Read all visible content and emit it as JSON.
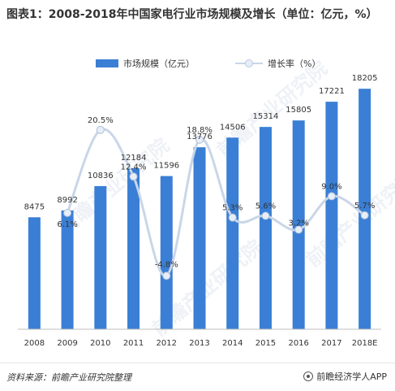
{
  "title": "图表1：2008-2018年中国家电行业市场规模及增长（单位：亿元，%）",
  "legend": {
    "bar_label": "市场规模（亿元）",
    "line_label": "增长率（%）"
  },
  "watermark": "前瞻产业研究院",
  "footer": {
    "source": "资料来源：前瞻产业研究院整理",
    "brand": "前瞻经济学人APP",
    "brand_icon": "qianzhan-logo-icon"
  },
  "colors": {
    "bar": "#3a7fd5",
    "line": "#c9d6e8",
    "marker_fill": "#e8eef7",
    "marker_stroke": "#aebfd8"
  },
  "chart_data": {
    "type": "bar",
    "categories": [
      "2008",
      "2009",
      "2010",
      "2011",
      "2012",
      "2013",
      "2014",
      "2015",
      "2016",
      "2017",
      "2018E"
    ],
    "series": [
      {
        "name": "市场规模（亿元）",
        "type": "bar",
        "axis": "left",
        "values": [
          8475,
          8992,
          10836,
          12184,
          11596,
          13776,
          14506,
          15314,
          15805,
          17221,
          18205
        ],
        "labels": [
          "8475",
          "8992",
          "10836",
          "12184",
          "11596",
          "13776",
          "14506",
          "15314",
          "15805",
          "17221",
          "18205"
        ]
      },
      {
        "name": "增长率（%）",
        "type": "line",
        "axis": "right",
        "smooth": true,
        "values": [
          null,
          6.1,
          20.5,
          12.4,
          -4.8,
          18.8,
          5.3,
          5.6,
          3.2,
          9.0,
          5.7
        ],
        "labels": [
          "",
          "6.1%",
          "20.5%",
          "12.4%",
          "-4.8%",
          "18.8%",
          "5.3%",
          "5.6%",
          "3.2%",
          "9.0%",
          "5.7%"
        ]
      }
    ],
    "ylim": [
      0,
      20000
    ],
    "y2lim": [
      -8,
      24
    ],
    "grid": false,
    "legend_position": "top"
  }
}
